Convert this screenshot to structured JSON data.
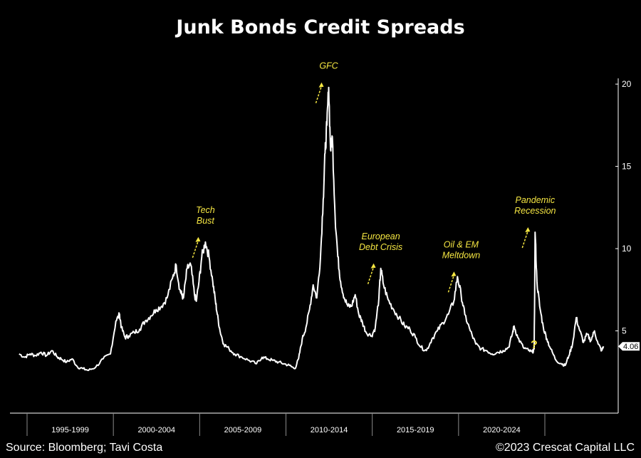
{
  "chart_data": {
    "type": "line",
    "title": "Junk Bonds Credit Spreads",
    "xlabel": "",
    "ylabel": "",
    "xlim": [
      1991.5,
      2024.8
    ],
    "ylim": [
      0,
      21
    ],
    "y_ticks": [
      5,
      10,
      15,
      20
    ],
    "x_tick_labels": [
      "1995-1999",
      "2000-2004",
      "2005-2009",
      "2010-2014",
      "2015-2019",
      "2020-2024"
    ],
    "grid": false,
    "color": "#ffffff",
    "last_value": "4.06",
    "series": [
      {
        "x": [
          1992.0,
          1992.3,
          1992.6,
          1992.9,
          1993.2,
          1993.5,
          1993.8,
          1994.1,
          1994.3,
          1994.6,
          1994.9,
          1995.2,
          1995.5,
          1995.8,
          1996.2,
          1996.6,
          1997.0,
          1997.3,
          1997.5,
          1997.6,
          1997.8,
          1998.0,
          1998.3,
          1998.6,
          1998.9,
          1999.2,
          1999.5,
          1999.8,
          2000.1,
          2000.4,
          2000.6,
          2000.8,
          2000.9,
          2001.0,
          2001.2,
          2001.4,
          2001.6,
          2001.7,
          2001.85,
          2002.0,
          2002.2,
          2002.4,
          2002.6,
          2002.75,
          2002.85,
          2003.0,
          2003.2,
          2003.5,
          2003.8,
          2004.2,
          2004.6,
          2005.0,
          2005.3,
          2005.6,
          2005.9,
          2006.2,
          2006.5,
          2006.8,
          2007.1,
          2007.3,
          2007.5,
          2007.7,
          2007.9,
          2008.1,
          2008.3,
          2008.5,
          2008.65,
          2008.75,
          2008.85,
          2008.95,
          2009.05,
          2009.15,
          2009.3,
          2009.45,
          2009.6,
          2009.8,
          2010.0,
          2010.2,
          2010.4,
          2010.6,
          2010.8,
          2011.0,
          2011.3,
          2011.5,
          2011.7,
          2011.8,
          2011.95,
          2012.2,
          2012.5,
          2012.8,
          2013.1,
          2013.4,
          2013.7,
          2014.0,
          2014.3,
          2014.6,
          2014.9,
          2015.2,
          2015.5,
          2015.8,
          2016.0,
          2016.2,
          2016.4,
          2016.7,
          2017.0,
          2017.3,
          2017.6,
          2017.9,
          2018.2,
          2018.5,
          2018.8,
          2019.0,
          2019.1,
          2019.3,
          2019.6,
          2019.9,
          2020.1,
          2020.2,
          2020.25,
          2020.35,
          2020.5,
          2020.7,
          2020.9,
          2021.1,
          2021.4,
          2021.7,
          2021.9,
          2022.1,
          2022.3,
          2022.5,
          2022.7,
          2022.9,
          2023.1,
          2023.3,
          2023.5,
          2023.7,
          2023.9,
          2024.0
        ],
        "y": [
          3.6,
          3.4,
          3.6,
          3.5,
          3.7,
          3.5,
          3.8,
          3.4,
          3.3,
          3.1,
          3.3,
          2.8,
          2.7,
          2.6,
          2.8,
          3.3,
          3.6,
          5.6,
          6.0,
          5.2,
          4.6,
          4.7,
          4.9,
          5.1,
          5.6,
          5.9,
          6.3,
          6.5,
          7.0,
          8.2,
          9.0,
          7.5,
          7.2,
          7.0,
          8.8,
          9.0,
          7.2,
          6.8,
          8.0,
          9.5,
          10.4,
          9.5,
          8.0,
          6.8,
          6.0,
          5.0,
          4.2,
          3.9,
          3.6,
          3.4,
          3.2,
          3.0,
          3.4,
          3.3,
          3.2,
          3.1,
          3.0,
          2.9,
          2.7,
          3.3,
          4.5,
          5.2,
          6.3,
          7.8,
          7.0,
          9.5,
          13.0,
          15.8,
          17.5,
          19.8,
          16.0,
          16.8,
          12.0,
          9.5,
          8.0,
          7.0,
          6.5,
          6.5,
          7.2,
          6.0,
          5.5,
          4.9,
          4.7,
          5.2,
          7.0,
          8.8,
          7.8,
          6.9,
          6.3,
          5.8,
          5.3,
          5.1,
          4.6,
          4.0,
          3.8,
          4.5,
          5.0,
          5.5,
          6.0,
          6.8,
          8.3,
          7.2,
          6.0,
          5.0,
          4.2,
          3.9,
          3.8,
          3.6,
          3.7,
          3.8,
          4.0,
          4.8,
          5.3,
          4.6,
          4.0,
          3.8,
          3.7,
          3.9,
          11.0,
          8.0,
          6.5,
          5.2,
          4.5,
          3.9,
          3.2,
          3.0,
          2.9,
          3.5,
          4.2,
          5.8,
          5.0,
          4.3,
          4.8,
          4.4,
          5.0,
          4.2,
          3.8,
          4.06
        ]
      }
    ],
    "annotations": [
      {
        "text": [
          "Tech",
          "Bust"
        ],
        "x": 2002.2,
        "y": 10.4
      },
      {
        "text": [
          "GFC"
        ],
        "x": 2008.95,
        "y": 19.8
      },
      {
        "text": [
          "European",
          "Debt Crisis"
        ],
        "x": 2011.8,
        "y": 8.8
      },
      {
        "text": [
          "Oil & EM",
          "Meltdown"
        ],
        "x": 2016.2,
        "y": 8.3
      },
      {
        "text": [
          "Pandemic",
          "Recession"
        ],
        "x": 2020.25,
        "y": 11.0
      }
    ],
    "question_mark": "?"
  },
  "footer": {
    "source": "Source: Bloomberg; Tavi Costa",
    "copyright": "©2023 Crescat Capital LLC"
  }
}
